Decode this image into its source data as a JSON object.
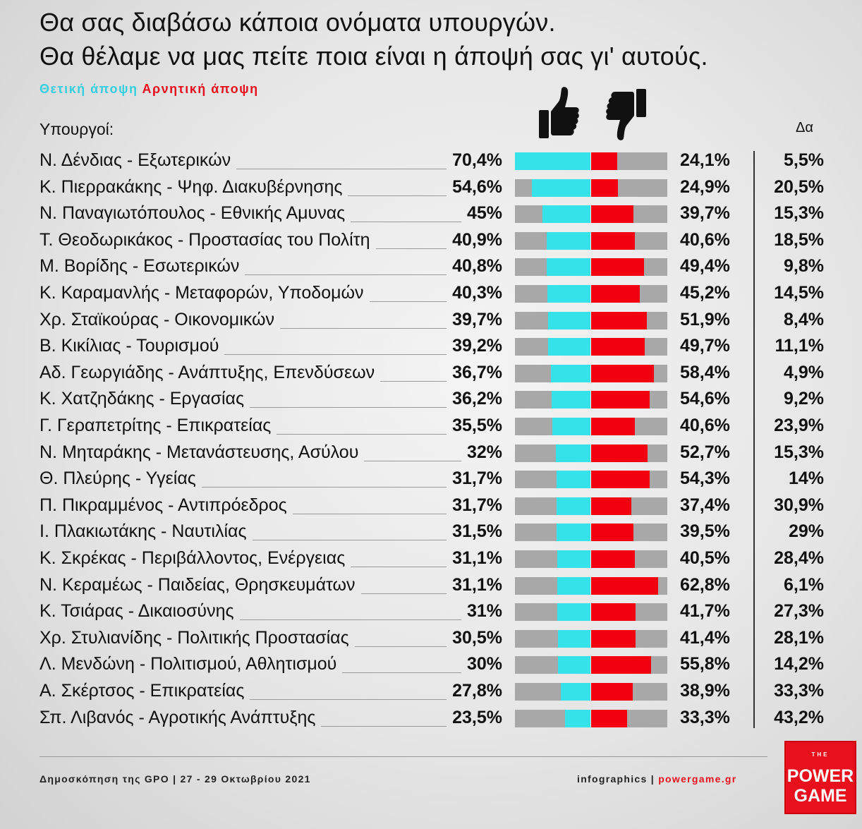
{
  "header": {
    "title_line1": "Θα σας διαβάσω κάποια ονόματα υπουργών.",
    "title_line2": "Θα θέλαμε να μας πείτε ποια είναι η άποψή σας γι' αυτούς.",
    "legend_positive": "Θετική άποψη",
    "legend_negative": "Αρνητική άποψη",
    "col_ministers": "Υπουργοί:",
    "col_dk": "Δα"
  },
  "colors": {
    "positive": "#35e2ea",
    "negative": "#f20010",
    "bar_bg": "#a8a8a8",
    "brand": "#e8101c"
  },
  "icons": {
    "positive": "thumbs-up-icon",
    "negative": "thumbs-down-icon"
  },
  "chart_data": {
    "type": "bar",
    "categories": [
      "Ν. Δένδιας - Εξωτερικών",
      "Κ. Πιερρακάκης - Ψηφ. Διακυβέρνησης",
      "Ν. Παναγιωτόπουλος - Εθνικής Αμυνας",
      "Τ. Θεοδωρικάκος - Προστασίας του Πολίτη",
      "Μ. Βορίδης - Εσωτερικών",
      "Κ. Καραμανλής - Μεταφορών, Υποδομών",
      "Χρ. Σταϊκούρας - Οικονομικών",
      "Β. Κικίλιας - Τουρισμού",
      "Αδ. Γεωργιάδης - Ανάπτυξης, Επενδύσεων",
      "Κ. Χατζηδάκης - Εργασίας",
      "Γ. Γεραπετρίτης - Επικρατείας",
      "Ν. Μηταράκης - Μετανάστευσης, Ασύλου",
      "Θ. Πλεύρης - Υγείας",
      "Π. Πικραμμένος - Αντιπρόεδρος",
      "Ι. Πλακιωτάκης - Ναυτιλίας",
      "Κ. Σκρέκας - Περιβάλλοντος, Ενέργειας",
      "Ν. Κεραμέως - Παιδείας, Θρησκευμάτων",
      "Κ. Τσιάρας - Δικαιοσύνης",
      "Χρ. Στυλιανίδης - Πολιτικής Προστασίας",
      "Λ. Μενδώνη - Πολιτισμού, Αθλητισμού",
      "Α. Σκέρτσος - Επικρατείας",
      "Σπ. Λιβανός - Αγροτικής Ανάπτυξης"
    ],
    "series": [
      {
        "name": "Θετική άποψη",
        "values": [
          70.4,
          54.6,
          45,
          40.9,
          40.8,
          40.3,
          39.7,
          39.2,
          36.7,
          36.2,
          35.5,
          32,
          31.7,
          31.7,
          31.5,
          31.1,
          31.1,
          31,
          30.5,
          30,
          27.8,
          23.5
        ]
      },
      {
        "name": "Αρνητική άποψη",
        "values": [
          24.1,
          24.9,
          39.7,
          40.6,
          49.4,
          45.2,
          51.9,
          49.7,
          58.4,
          54.6,
          40.6,
          52.7,
          54.3,
          37.4,
          39.5,
          40.5,
          62.8,
          41.7,
          41.4,
          55.8,
          38.9,
          33.3
        ]
      },
      {
        "name": "Δα",
        "values": [
          5.5,
          20.5,
          15.3,
          18.5,
          9.8,
          14.5,
          8.4,
          11.1,
          4.9,
          9.2,
          23.9,
          15.3,
          14,
          30.9,
          29,
          28.4,
          6.1,
          27.3,
          28.1,
          14.2,
          33.3,
          43.2
        ]
      }
    ],
    "labels_positive": [
      "70,4%",
      "54,6%",
      "45%",
      "40,9%",
      "40,8%",
      "40,3%",
      "39,7%",
      "39,2%",
      "36,7%",
      "36,2%",
      "35,5%",
      "32%",
      "31,7%",
      "31,7%",
      "31,5%",
      "31,1%",
      "31,1%",
      "31%",
      "30,5%",
      "30%",
      "27,8%",
      "23,5%"
    ],
    "labels_negative": [
      "24,1%",
      "24,9%",
      "39,7%",
      "40,6%",
      "49,4%",
      "45,2%",
      "51,9%",
      "49,7%",
      "58,4%",
      "54,6%",
      "40,6%",
      "52,7%",
      "54,3%",
      "37,4%",
      "39,5%",
      "40,5%",
      "62,8%",
      "41,7%",
      "41,4%",
      "55,8%",
      "38,9%",
      "33,3%"
    ],
    "labels_dk": [
      "5,5%",
      "20,5%",
      "15,3%",
      "18,5%",
      "9,8%",
      "14,5%",
      "8,4%",
      "11,1%",
      "4,9%",
      "9,2%",
      "23,9%",
      "15,3%",
      "14%",
      "30,9%",
      "29%",
      "28,4%",
      "6,1%",
      "27,3%",
      "28,1%",
      "14,2%",
      "33,3%",
      "43,2%"
    ],
    "axis_max": 100,
    "title": "Θα σας διαβάσω κάποια ονόματα υπουργών. Θα θέλαμε να μας πείτε ποια είναι η άποψή σας γι' αυτούς.",
    "xlabel": "",
    "ylabel": "Υπουργοί:",
    "legend": [
      "Θετική άποψη",
      "Αρνητική άποψη"
    ],
    "legend_position": "top-left",
    "grid": false
  },
  "footer": {
    "source": "Δημοσκόπηση της GPO | 27 - 29 Οκτωβρίου 2021",
    "credit_prefix": "infographics | ",
    "credit_site": "powergame.gr",
    "logo_small": "THE",
    "logo_line1": "POWER",
    "logo_line2": "GAME"
  }
}
